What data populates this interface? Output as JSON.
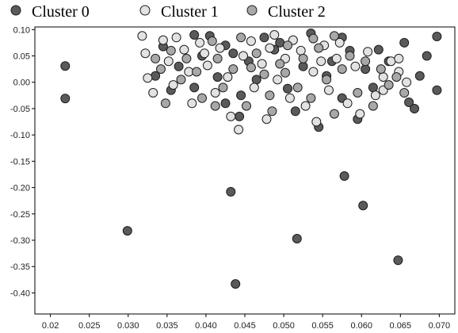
{
  "chart_data": {
    "type": "scatter",
    "title": "",
    "xlabel": "",
    "ylabel": "",
    "xlim": [
      0.018,
      0.072
    ],
    "ylim": [
      -0.44,
      0.105
    ],
    "grid": false,
    "legend_position": "top-left",
    "x_ticks": [
      0.02,
      0.025,
      0.03,
      0.035,
      0.04,
      0.045,
      0.05,
      0.055,
      0.06,
      0.065,
      0.07
    ],
    "x_tick_labels": [
      "0.02",
      "0.025",
      "0.030",
      "0.035",
      "0.040",
      "0.045",
      "0.050",
      "0.055",
      "0.060",
      "0.065",
      "0.070"
    ],
    "y_ticks": [
      0.1,
      0.05,
      0.0,
      -0.05,
      -0.1,
      -0.15,
      -0.2,
      -0.25,
      -0.3,
      -0.35,
      -0.4
    ],
    "y_tick_labels": [
      "0.10",
      "0.05",
      "0.00",
      "-0.05",
      "-0.10",
      "-0.15",
      "-0.20",
      "-0.25",
      "-0.30",
      "-0.35",
      "-0.40"
    ],
    "series": [
      {
        "name": "Cluster 0",
        "color": "#5a5a5a",
        "points": [
          [
            0.0219,
            0.031
          ],
          [
            0.0219,
            -0.031
          ],
          [
            0.0299,
            -0.282
          ],
          [
            0.0432,
            -0.208
          ],
          [
            0.0438,
            -0.383
          ],
          [
            0.0517,
            -0.297
          ],
          [
            0.0578,
            -0.178
          ],
          [
            0.0602,
            -0.234
          ],
          [
            0.0647,
            -0.338
          ],
          [
            0.0668,
            -0.05
          ],
          [
            0.0684,
            0.05
          ],
          [
            0.0697,
            0.087
          ],
          [
            0.0697,
            -0.015
          ],
          [
            0.0655,
            0.075
          ],
          [
            0.0675,
            0.012
          ],
          [
            0.0661,
            -0.038
          ],
          [
            0.0622,
            0.062
          ],
          [
            0.0385,
            0.09
          ],
          [
            0.0405,
            0.088
          ],
          [
            0.0425,
            0.07
          ],
          [
            0.0443,
            -0.065
          ],
          [
            0.0475,
            0.085
          ],
          [
            0.0535,
            0.093
          ],
          [
            0.0562,
            0.04
          ],
          [
            0.0585,
            0.06
          ],
          [
            0.0605,
            0.025
          ],
          [
            0.0595,
            -0.07
          ],
          [
            0.0545,
            -0.085
          ],
          [
            0.0515,
            -0.055
          ],
          [
            0.0488,
            0.062
          ],
          [
            0.0455,
            0.04
          ],
          [
            0.0415,
            0.01
          ],
          [
            0.0395,
            0.05
          ],
          [
            0.0365,
            0.03
          ],
          [
            0.0345,
            0.068
          ],
          [
            0.0335,
            0.012
          ],
          [
            0.0355,
            -0.015
          ],
          [
            0.0445,
            -0.025
          ],
          [
            0.0505,
            -0.012
          ],
          [
            0.0555,
            0.012
          ],
          [
            0.0575,
            -0.03
          ],
          [
            0.0615,
            -0.01
          ],
          [
            0.0635,
            0.04
          ],
          [
            0.0525,
            0.03
          ],
          [
            0.0465,
            0.005
          ],
          [
            0.0425,
            -0.04
          ],
          [
            0.0385,
            -0.01
          ],
          [
            0.0575,
            0.085
          ],
          [
            0.0495,
            0.075
          ],
          [
            0.0435,
            0.055
          ]
        ]
      },
      {
        "name": "Cluster 1",
        "color": "#e2e2e2",
        "points": [
          [
            0.0318,
            0.088
          ],
          [
            0.0322,
            0.055
          ],
          [
            0.0325,
            0.008
          ],
          [
            0.0332,
            -0.02
          ],
          [
            0.0345,
            0.08
          ],
          [
            0.0352,
            0.04
          ],
          [
            0.0358,
            -0.005
          ],
          [
            0.0362,
            0.085
          ],
          [
            0.0372,
            0.062
          ],
          [
            0.0378,
            0.02
          ],
          [
            0.0382,
            -0.04
          ],
          [
            0.0392,
            0.075
          ],
          [
            0.0402,
            0.032
          ],
          [
            0.0412,
            -0.02
          ],
          [
            0.0418,
            0.065
          ],
          [
            0.0428,
            0.01
          ],
          [
            0.0432,
            -0.065
          ],
          [
            0.0442,
            -0.09
          ],
          [
            0.0448,
            0.05
          ],
          [
            0.0458,
            0.078
          ],
          [
            0.0462,
            -0.01
          ],
          [
            0.0472,
            0.035
          ],
          [
            0.0478,
            -0.07
          ],
          [
            0.0482,
            0.065
          ],
          [
            0.0492,
            0.005
          ],
          [
            0.0502,
            0.045
          ],
          [
            0.0508,
            -0.03
          ],
          [
            0.0512,
            0.08
          ],
          [
            0.0522,
            0.06
          ],
          [
            0.0528,
            -0.045
          ],
          [
            0.0538,
            0.02
          ],
          [
            0.0542,
            -0.075
          ],
          [
            0.0552,
            0.07
          ],
          [
            0.0558,
            -0.015
          ],
          [
            0.0568,
            0.045
          ],
          [
            0.0572,
            0.075
          ],
          [
            0.0582,
            -0.04
          ],
          [
            0.0592,
            0.03
          ],
          [
            0.0598,
            -0.06
          ],
          [
            0.0608,
            0.058
          ],
          [
            0.0618,
            -0.025
          ],
          [
            0.0628,
            0.01
          ],
          [
            0.0638,
            0.04
          ],
          [
            0.0648,
            0.02
          ],
          [
            0.0658,
            0.0
          ],
          [
            0.0648,
            0.045
          ],
          [
            0.0628,
            -0.015
          ],
          [
            0.0398,
            0.055
          ],
          [
            0.0488,
            0.09
          ],
          [
            0.0548,
            0.04
          ]
        ]
      },
      {
        "name": "Cluster 2",
        "color": "#a8a8a8",
        "points": [
          [
            0.0335,
            0.045
          ],
          [
            0.0342,
            0.025
          ],
          [
            0.0348,
            -0.04
          ],
          [
            0.0355,
            0.06
          ],
          [
            0.0368,
            0.005
          ],
          [
            0.0375,
            0.045
          ],
          [
            0.0388,
            0.02
          ],
          [
            0.0395,
            -0.03
          ],
          [
            0.0408,
            0.078
          ],
          [
            0.0415,
            0.045
          ],
          [
            0.0422,
            -0.01
          ],
          [
            0.0435,
            0.025
          ],
          [
            0.0445,
            0.085
          ],
          [
            0.0452,
            -0.045
          ],
          [
            0.0465,
            0.055
          ],
          [
            0.0475,
            0.015
          ],
          [
            0.0485,
            -0.055
          ],
          [
            0.0495,
            0.035
          ],
          [
            0.0505,
            0.07
          ],
          [
            0.0518,
            -0.01
          ],
          [
            0.0525,
            0.045
          ],
          [
            0.0535,
            -0.03
          ],
          [
            0.0545,
            0.065
          ],
          [
            0.0555,
            0.005
          ],
          [
            0.0565,
            -0.06
          ],
          [
            0.0575,
            0.025
          ],
          [
            0.0585,
            0.05
          ],
          [
            0.0595,
            -0.02
          ],
          [
            0.0605,
            0.04
          ],
          [
            0.0615,
            -0.045
          ],
          [
            0.0625,
            0.025
          ],
          [
            0.0635,
            -0.005
          ],
          [
            0.0645,
            0.01
          ],
          [
            0.0655,
            -0.02
          ],
          [
            0.0565,
            0.088
          ],
          [
            0.0458,
            0.028
          ],
          [
            0.0502,
            0.018
          ],
          [
            0.0538,
            0.083
          ],
          [
            0.0482,
            -0.025
          ],
          [
            0.0412,
            -0.045
          ]
        ]
      }
    ]
  }
}
